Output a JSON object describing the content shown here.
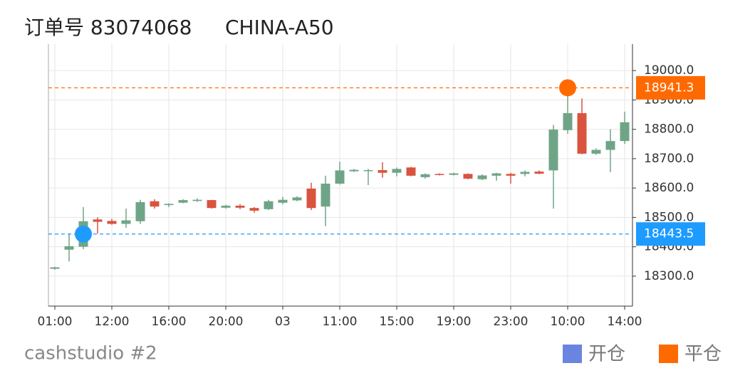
{
  "chart_data": {
    "type": "candlestick",
    "title": "订单号 83074068",
    "subtitle": "CHINA-A50",
    "footer": "cashstudio #2",
    "categories": [
      "01:00",
      null,
      null,
      null,
      "12:00",
      null,
      null,
      null,
      "16:00",
      null,
      null,
      null,
      "20:00",
      null,
      null,
      null,
      "03",
      null,
      null,
      null,
      "11:00",
      null,
      null,
      null,
      "15:00",
      null,
      null,
      null,
      "19:00",
      null,
      null,
      null,
      "23:00",
      null,
      null,
      null,
      "10:00",
      null,
      null,
      null,
      "14:00"
    ],
    "open": [
      18325,
      18390,
      18400,
      18493,
      18488,
      18478,
      18487,
      18555,
      18542,
      18550,
      18556,
      18559,
      18533,
      18540,
      18532,
      18528,
      18550,
      18558,
      18598,
      18537,
      18615,
      18657,
      18659,
      18661,
      18652,
      18670,
      18637,
      18648,
      18645,
      18648,
      18630,
      18642,
      18648,
      18648,
      18656,
      18660,
      18797,
      18855,
      18717,
      18730,
      18760
    ],
    "high": [
      18332,
      18445,
      18535,
      18500,
      18495,
      18530,
      18560,
      18562,
      18548,
      18562,
      18565,
      18560,
      18543,
      18545,
      18535,
      18560,
      18570,
      18572,
      18618,
      18642,
      18690,
      18665,
      18665,
      18688,
      18670,
      18672,
      18650,
      18650,
      18652,
      18650,
      18647,
      18652,
      18652,
      18660,
      18660,
      18815,
      18941,
      18905,
      18735,
      18800,
      18860
    ],
    "low": [
      18322,
      18350,
      18392,
      18445,
      18475,
      18465,
      18478,
      18530,
      18535,
      18548,
      18553,
      18530,
      18530,
      18528,
      18516,
      18525,
      18545,
      18555,
      18525,
      18470,
      18612,
      18655,
      18610,
      18635,
      18640,
      18640,
      18632,
      18643,
      18643,
      18630,
      18627,
      18625,
      18615,
      18640,
      18647,
      18530,
      18785,
      18715,
      18713,
      18654,
      18750
    ],
    "close": [
      18330,
      18402,
      18487,
      18485,
      18478,
      18490,
      18552,
      18537,
      18546,
      18559,
      18560,
      18532,
      18540,
      18533,
      18523,
      18555,
      18560,
      18568,
      18532,
      18615,
      18660,
      18662,
      18661,
      18652,
      18665,
      18642,
      18647,
      18645,
      18650,
      18632,
      18643,
      18650,
      18642,
      18655,
      18649,
      18799,
      18855,
      18717,
      18730,
      18760,
      18824
    ],
    "up_color": "#6fa587",
    "down_color": "#d9533f",
    "ylim": [
      18198,
      19090
    ],
    "yticks": [
      {
        "value": 18300,
        "label": "18300.0"
      },
      {
        "value": 18400,
        "label": "18400.0"
      },
      {
        "value": 18500,
        "label": "18500.0"
      },
      {
        "value": 18600,
        "label": "18600.0"
      },
      {
        "value": 18700,
        "label": "18700.0"
      },
      {
        "value": 18800,
        "label": "18800.0"
      },
      {
        "value": 18900,
        "label": "18900.0"
      },
      {
        "value": 19000,
        "label": "19000.0"
      }
    ],
    "grid": true,
    "trades": [
      {
        "name": "开仓",
        "price": 18443.5,
        "index": 2,
        "color": "#1e9bff",
        "legend_color": "#6a85e0"
      },
      {
        "name": "平仓",
        "price": 18941.3,
        "index": 36,
        "color": "#ff6a00",
        "legend_color": "#ff6a00"
      }
    ]
  }
}
